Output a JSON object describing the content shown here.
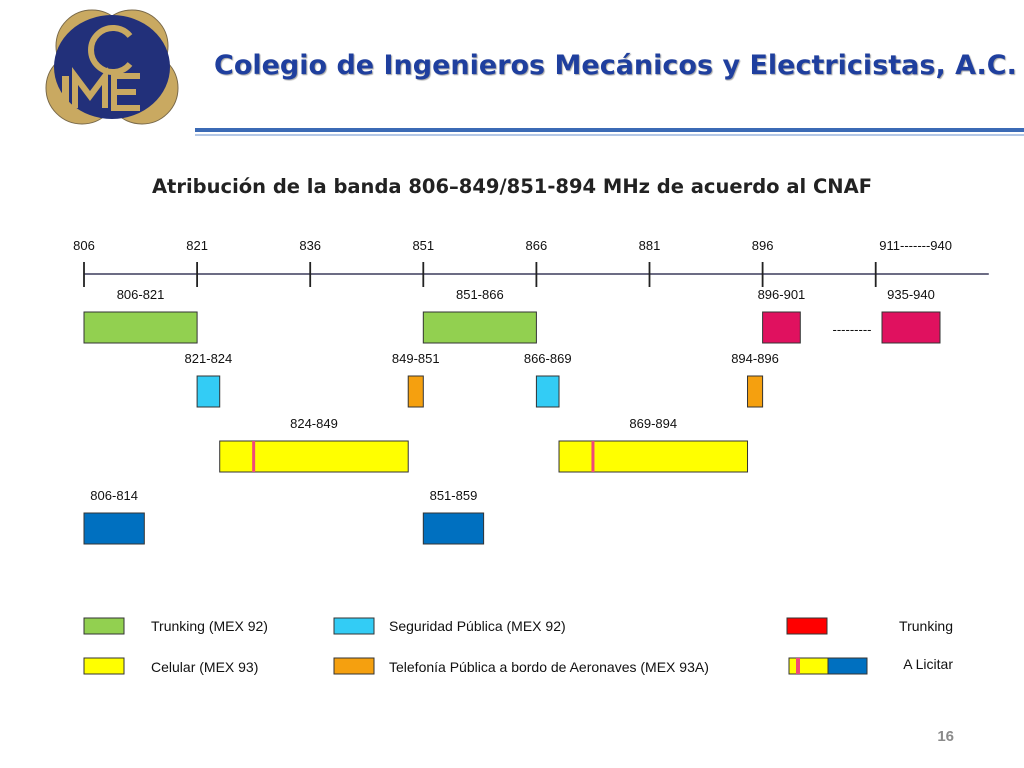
{
  "header": {
    "logo_text": "CIME",
    "title": "Colegio de Ingenieros Mecánicos y Electricistas, A.C."
  },
  "slide": {
    "title": "Atribución de la banda 806–849/851-894 MHz de acuerdo al CNAF",
    "page_number": "16"
  },
  "colors": {
    "trunking_mex92": "#92d050",
    "seguridad_publica": "#33ccf5",
    "celular": "#ffff00",
    "telefonia_aeronaves": "#f5a00f",
    "trunking": "#ff0000",
    "new_trunking_blocks": "#e0115f",
    "a_licitar": "#0070c0",
    "celular_marker": "#f04a78",
    "axis": "#3c3c5c"
  },
  "axis": {
    "ticks": [
      806,
      821,
      836,
      851,
      866,
      881,
      896,
      911
    ],
    "tick_labels": [
      "806",
      "821",
      "836",
      "851",
      "866",
      "881",
      "896",
      "911-------940"
    ],
    "range": [
      806,
      926
    ]
  },
  "blocks": [
    {
      "label": "806-821",
      "start": 806,
      "end": 821,
      "category": "trunking_mex92"
    },
    {
      "label": "851-866",
      "start": 851,
      "end": 866,
      "category": "trunking_mex92"
    },
    {
      "label": "896-901",
      "start": 896,
      "end": 901,
      "category": "trunking"
    },
    {
      "label": "935-940",
      "start": 935,
      "end": 940,
      "category": "trunking"
    },
    {
      "label": "821-824",
      "start": 821,
      "end": 824,
      "category": "seguridad_publica"
    },
    {
      "label": "849-851",
      "start": 849,
      "end": 851,
      "category": "telefonia_aeronaves"
    },
    {
      "label": "866-869",
      "start": 866,
      "end": 869,
      "category": "seguridad_publica"
    },
    {
      "label": "894-896",
      "start": 894,
      "end": 896,
      "category": "telefonia_aeronaves"
    },
    {
      "label": "824-849",
      "start": 824,
      "end": 849,
      "category": "celular"
    },
    {
      "label": "869-894",
      "start": 869,
      "end": 894,
      "category": "celular"
    },
    {
      "label": "806-814",
      "start": 806,
      "end": 814,
      "category": "a_licitar"
    },
    {
      "label": "851-859",
      "start": 851,
      "end": 859,
      "category": "a_licitar"
    }
  ],
  "gap_label": "---------",
  "legend": {
    "trunking_mex92": "Trunking (MEX 92)",
    "seguridad_publica": "Seguridad Pública (MEX 92)",
    "celular": "Celular (MEX 93)",
    "telefonia_aeronaves": "Telefonía Pública a bordo de Aeronaves (MEX 93A)",
    "trunking": "Trunking",
    "a_licitar": "A Licitar"
  }
}
